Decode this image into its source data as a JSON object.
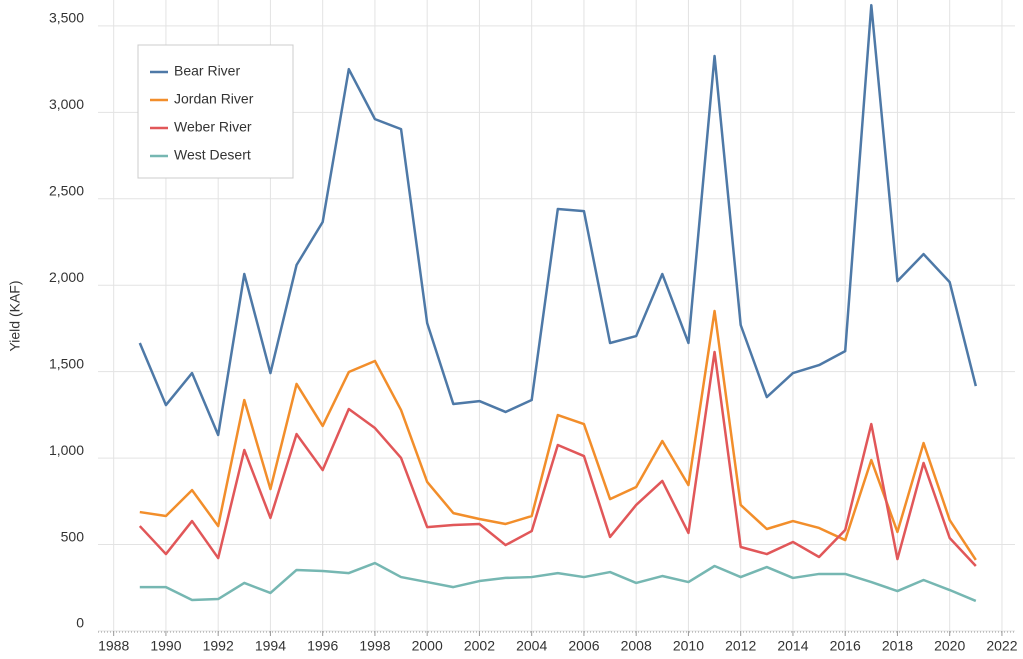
{
  "chart_data": {
    "type": "line",
    "y_label": "Yield (KAF)",
    "x": [
      1989,
      1990,
      1991,
      1992,
      1993,
      1994,
      1995,
      1996,
      1997,
      1998,
      1999,
      2000,
      2001,
      2002,
      2003,
      2004,
      2005,
      2006,
      2007,
      2008,
      2009,
      2010,
      2011,
      2012,
      2013,
      2014,
      2015,
      2016,
      2017,
      2018,
      2019,
      2020,
      2021
    ],
    "series": [
      {
        "name": "Bear River",
        "color": "#4e79a7",
        "values": [
          1666,
          1307,
          1492,
          1134,
          2065,
          1492,
          2117,
          2366,
          3250,
          2961,
          2903,
          1781,
          1313,
          1330,
          1267,
          1336,
          2441,
          2429,
          1666,
          1706,
          2065,
          1666,
          3326,
          1770,
          1353,
          1492,
          1538,
          1619,
          3620,
          2024,
          2180,
          2018,
          1417
        ]
      },
      {
        "name": "Jordan River",
        "color": "#f28e2b",
        "values": [
          688,
          665,
          815,
          607,
          1336,
          821,
          1429,
          1186,
          1498,
          1562,
          1278,
          862,
          682,
          648,
          619,
          665,
          1249,
          1197,
          763,
          833,
          1099,
          844,
          1851,
          729,
          590,
          636,
          596,
          526,
          989,
          573,
          1087,
          642,
          411
        ]
      },
      {
        "name": "Weber River",
        "color": "#e15759",
        "values": [
          607,
          445,
          636,
          422,
          1047,
          654,
          1139,
          931,
          1284,
          1174,
          1001,
          601,
          613,
          619,
          497,
          578,
          1076,
          1012,
          544,
          729,
          868,
          567,
          1614,
          486,
          445,
          515,
          428,
          584,
          1197,
          416,
          972,
          538,
          376
        ]
      },
      {
        "name": "West Desert",
        "color": "#76b7b2",
        "values": [
          254,
          254,
          179,
          185,
          278,
          220,
          353,
          347,
          335,
          393,
          312,
          283,
          254,
          289,
          307,
          312,
          335,
          312,
          341,
          278,
          318,
          283,
          376,
          312,
          370,
          307,
          330,
          330,
          283,
          231,
          295,
          237,
          174
        ]
      }
    ],
    "xlim": [
      1987.4,
      2022.5
    ],
    "xticks": [
      1988,
      1990,
      1992,
      1994,
      1996,
      1998,
      2000,
      2002,
      2004,
      2006,
      2008,
      2010,
      2012,
      2014,
      2016,
      2018,
      2020,
      2022
    ],
    "ylim": [
      0,
      3650
    ],
    "yticks": [
      0,
      500,
      {
        "value": 1000,
        "label": "1,000"
      },
      {
        "value": 1500,
        "label": "1,500"
      },
      {
        "value": 2000,
        "label": "2,000"
      },
      {
        "value": 2500,
        "label": "2,500"
      },
      {
        "value": 3000,
        "label": "3,000"
      },
      {
        "value": 3500,
        "label": "3,500"
      }
    ],
    "grid": true,
    "legend": "top-left"
  }
}
